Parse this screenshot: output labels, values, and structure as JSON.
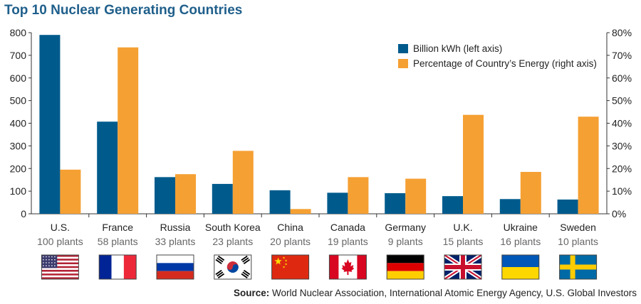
{
  "chart_data": {
    "type": "bar",
    "title": "Top 10 Nuclear Generating Countries",
    "categories": [
      "U.S.",
      "France",
      "Russia",
      "South Korea",
      "China",
      "Canada",
      "Germany",
      "U.K.",
      "Ukraine",
      "Sweden"
    ],
    "plant_counts": [
      "100 plants",
      "58 plants",
      "33 plants",
      "23 plants",
      "20 plants",
      "19 plants",
      "9 plants",
      "15 plants",
      "16 plants",
      "10 plants"
    ],
    "flag_icons": [
      "us-flag-icon",
      "france-flag-icon",
      "russia-flag-icon",
      "south-korea-flag-icon",
      "china-flag-icon",
      "canada-flag-icon",
      "germany-flag-icon",
      "uk-flag-icon",
      "ukraine-flag-icon",
      "sweden-flag-icon"
    ],
    "series": [
      {
        "name": "Billion kWh (left axis)",
        "axis": "left",
        "color": "#005b8c",
        "values": [
          790,
          407,
          162,
          132,
          104,
          93,
          91,
          78,
          65,
          63
        ]
      },
      {
        "name": "Percentage of Country’s Energy (right axis)",
        "axis": "right",
        "color": "#f5a033",
        "values": [
          19.5,
          73.5,
          17.5,
          27.8,
          2.1,
          16.2,
          15.5,
          43.7,
          18.5,
          42.9
        ]
      }
    ],
    "left_axis": {
      "min": 0,
      "max": 800,
      "ticks": [
        0,
        100,
        200,
        300,
        400,
        500,
        600,
        700,
        800
      ]
    },
    "right_axis": {
      "min": 0,
      "max": 80,
      "ticks": [
        "0%",
        "10%",
        "20%",
        "30%",
        "40%",
        "50%",
        "60%",
        "70%",
        "80%"
      ]
    },
    "legend_position": "top-right",
    "grid": false
  },
  "source": {
    "label": "Source:",
    "text": "World Nuclear Association, International Atomic Energy Agency, U.S. Global Investors"
  }
}
